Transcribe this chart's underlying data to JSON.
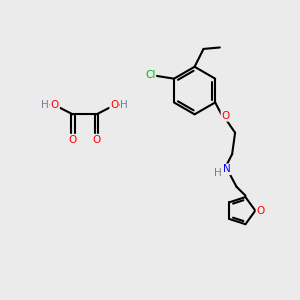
{
  "bg_color": "#ebebeb",
  "atom_colors": {
    "C": "#000000",
    "H": "#708090",
    "O": "#ff0000",
    "N": "#0000ff",
    "Cl": "#00bb00"
  },
  "bond_color": "#000000",
  "bond_width": 1.5
}
